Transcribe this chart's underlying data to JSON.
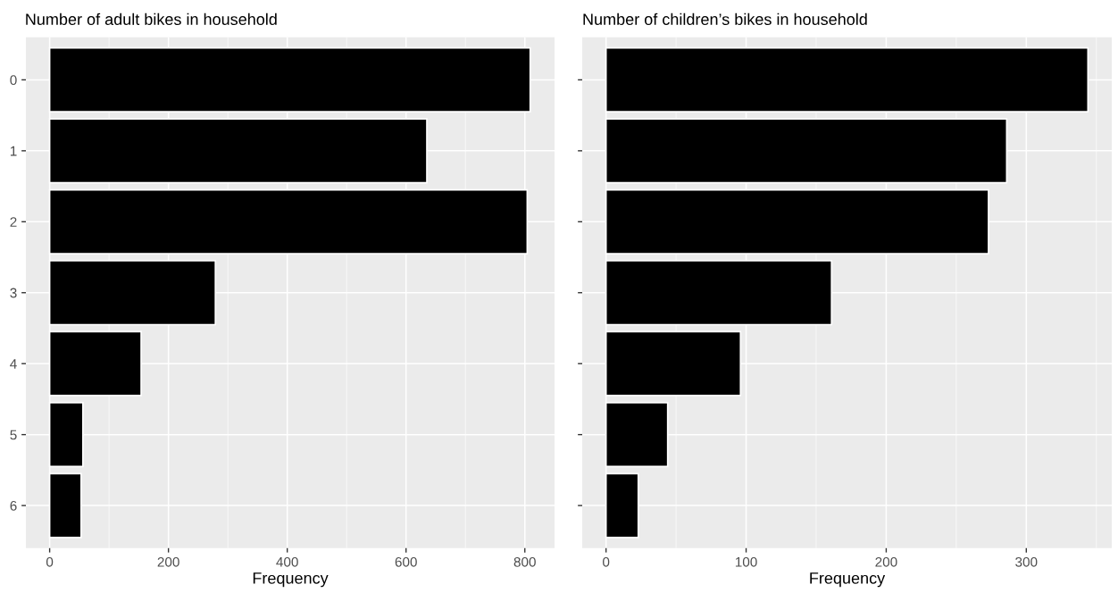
{
  "chart_data": [
    {
      "type": "bar",
      "orientation": "horizontal",
      "title": "Number of adult bikes in household",
      "xlabel": "Frequency",
      "categories": [
        "0",
        "1",
        "2",
        "3",
        "4",
        "5",
        "6"
      ],
      "values": [
        809,
        635,
        804,
        279,
        154,
        56,
        53
      ],
      "color": "#000000",
      "xlim": [
        -40,
        850
      ],
      "xticks": [
        0,
        200,
        400,
        600,
        800
      ],
      "grid": true
    },
    {
      "type": "bar",
      "orientation": "horizontal",
      "title": "Number of children’s bikes in household",
      "xlabel": "Frequency",
      "categories": [
        "0",
        "1",
        "2",
        "3",
        "4",
        "5",
        "6"
      ],
      "values": [
        344,
        286,
        273,
        161,
        96,
        44,
        23
      ],
      "color": "#000000",
      "xlim": [
        -17,
        361
      ],
      "xticks": [
        0,
        100,
        200,
        300
      ],
      "grid": true,
      "tick_labels": "x"
    }
  ]
}
